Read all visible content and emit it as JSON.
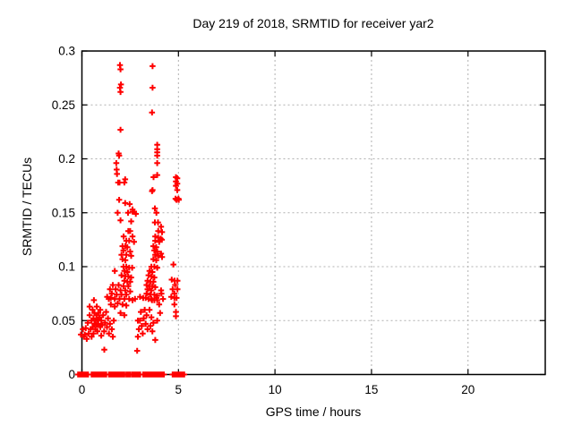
{
  "chart_data": {
    "type": "scatter",
    "title": "Day 219 of 2018, SRMTID for receiver yar2",
    "xlabel": "GPS time / hours",
    "ylabel": "SRMTID / TECUs",
    "legend": "none",
    "grid": true,
    "marker": "plus",
    "xlim": [
      0,
      24
    ],
    "ylim": [
      0,
      0.3
    ],
    "x_ticks": [
      0,
      5,
      10,
      15,
      20
    ],
    "x_tick_labels": [
      "0",
      "5",
      "10",
      "15",
      "20"
    ],
    "y_ticks": [
      0,
      0.05,
      0.1,
      0.15,
      0.2,
      0.25,
      0.3
    ],
    "y_tick_labels": [
      "0",
      "0.05",
      "0.1",
      "0.15",
      "0.2",
      "0.25",
      "0.3"
    ],
    "colors": {
      "marker": "#ff0000",
      "grid": "#b0b0b0",
      "frame": "#000000",
      "background": "#ffffff",
      "text": "#000000"
    },
    "points": [
      [
        -0.05,
        0.037
      ],
      [
        0.05,
        0.042
      ],
      [
        0.1,
        0.035
      ],
      [
        0.15,
        0.037
      ],
      [
        0.2,
        0.043
      ],
      [
        0.25,
        0.033
      ],
      [
        0.3,
        0.048
      ],
      [
        0.35,
        0.038
      ],
      [
        0.4,
        0.055
      ],
      [
        0.4,
        0.063
      ],
      [
        0.45,
        0.042
      ],
      [
        0.5,
        0.035
      ],
      [
        0.5,
        0.05
      ],
      [
        0.55,
        0.06
      ],
      [
        0.55,
        0.044
      ],
      [
        0.6,
        0.052
      ],
      [
        0.6,
        0.038
      ],
      [
        0.62,
        0.069
      ],
      [
        0.65,
        0.047
      ],
      [
        0.65,
        0.057
      ],
      [
        0.7,
        0.05
      ],
      [
        0.7,
        0.042
      ],
      [
        0.75,
        0.055
      ],
      [
        0.75,
        0.046
      ],
      [
        0.77,
        0.063
      ],
      [
        0.8,
        0.051
      ],
      [
        0.8,
        0.04
      ],
      [
        0.85,
        0.057
      ],
      [
        0.85,
        0.047
      ],
      [
        0.9,
        0.053
      ],
      [
        0.95,
        0.044
      ],
      [
        0.95,
        0.06
      ],
      [
        1.0,
        0.05
      ],
      [
        1.0,
        0.036
      ],
      [
        1.05,
        0.046
      ],
      [
        1.1,
        0.055
      ],
      [
        1.15,
        0.04
      ],
      [
        1.16,
        0.023
      ],
      [
        1.2,
        0.048
      ],
      [
        1.25,
        0.058
      ],
      [
        1.3,
        0.044
      ],
      [
        1.31,
        0.072
      ],
      [
        1.35,
        0.052
      ],
      [
        1.39,
        0.07
      ],
      [
        1.4,
        0.038
      ],
      [
        1.45,
        0.047
      ],
      [
        1.45,
        0.079
      ],
      [
        1.5,
        0.065
      ],
      [
        1.5,
        0.071
      ],
      [
        1.55,
        0.042
      ],
      [
        1.55,
        0.075
      ],
      [
        1.6,
        0.035
      ],
      [
        1.6,
        0.083
      ],
      [
        1.65,
        0.05
      ],
      [
        1.7,
        0.063
      ],
      [
        1.7,
        0.07
      ],
      [
        1.7,
        0.096
      ],
      [
        1.75,
        0.079
      ],
      [
        1.78,
        0.196
      ],
      [
        1.8,
        0.19
      ],
      [
        1.8,
        0.074
      ],
      [
        1.82,
        0.186
      ],
      [
        1.85,
        0.15
      ],
      [
        1.85,
        0.066
      ],
      [
        1.88,
        0.178
      ],
      [
        1.9,
        0.205
      ],
      [
        1.9,
        0.083
      ],
      [
        1.93,
        0.162
      ],
      [
        1.93,
        0.203
      ],
      [
        1.95,
        0.178
      ],
      [
        1.95,
        0.07
      ],
      [
        1.97,
        0.287
      ],
      [
        1.97,
        0.266
      ],
      [
        2.0,
        0.283
      ],
      [
        2.0,
        0.262
      ],
      [
        2.0,
        0.227
      ],
      [
        2.0,
        0.143
      ],
      [
        2.0,
        0.078
      ],
      [
        2.0,
        0.057
      ],
      [
        2.02,
        0.269
      ],
      [
        2.05,
        0.111
      ],
      [
        2.05,
        0.092
      ],
      [
        2.05,
        0.074
      ],
      [
        2.1,
        0.119
      ],
      [
        2.1,
        0.107
      ],
      [
        2.1,
        0.065
      ],
      [
        2.15,
        0.115
      ],
      [
        2.15,
        0.1
      ],
      [
        2.15,
        0.082
      ],
      [
        2.16,
        0.128
      ],
      [
        2.2,
        0.178
      ],
      [
        2.2,
        0.096
      ],
      [
        2.2,
        0.087
      ],
      [
        2.2,
        0.07
      ],
      [
        2.2,
        0.055
      ],
      [
        2.24,
        0.181
      ],
      [
        2.24,
        0.159
      ],
      [
        2.25,
        0.119
      ],
      [
        2.25,
        0.106
      ],
      [
        2.25,
        0.091
      ],
      [
        2.25,
        0.078
      ],
      [
        2.3,
        0.124
      ],
      [
        2.3,
        0.111
      ],
      [
        2.3,
        0.1
      ],
      [
        2.3,
        0.074
      ],
      [
        2.3,
        0.064
      ],
      [
        2.35,
        0.118
      ],
      [
        2.35,
        0.095
      ],
      [
        2.35,
        0.086
      ],
      [
        2.39,
        0.15
      ],
      [
        2.4,
        0.133
      ],
      [
        2.4,
        0.091
      ],
      [
        2.4,
        0.082
      ],
      [
        2.45,
        0.124
      ],
      [
        2.45,
        0.099
      ],
      [
        2.45,
        0.07
      ],
      [
        2.47,
        0.158
      ],
      [
        2.5,
        0.133
      ],
      [
        2.5,
        0.114
      ],
      [
        2.5,
        0.086
      ],
      [
        2.5,
        0.077
      ],
      [
        2.55,
        0.142
      ],
      [
        2.55,
        0.11
      ],
      [
        2.55,
        0.09
      ],
      [
        2.6,
        0.099
      ],
      [
        2.62,
        0.151
      ],
      [
        2.62,
        0.128
      ],
      [
        2.62,
        0.153
      ],
      [
        2.62,
        0.069
      ],
      [
        2.7,
        0.151
      ],
      [
        2.7,
        0.123
      ],
      [
        2.75,
        0.07
      ],
      [
        2.79,
        0.149
      ],
      [
        2.86,
        0.022
      ],
      [
        2.9,
        0.035
      ],
      [
        2.9,
        0.05
      ],
      [
        2.95,
        0.042
      ],
      [
        3.0,
        0.05
      ],
      [
        3.01,
        0.072
      ],
      [
        3.05,
        0.058
      ],
      [
        3.1,
        0.045
      ],
      [
        3.15,
        0.038
      ],
      [
        3.17,
        0.071
      ],
      [
        3.2,
        0.052
      ],
      [
        3.25,
        0.06
      ],
      [
        3.3,
        0.071
      ],
      [
        3.3,
        0.047
      ],
      [
        3.35,
        0.083
      ],
      [
        3.35,
        0.075
      ],
      [
        3.35,
        0.055
      ],
      [
        3.4,
        0.087
      ],
      [
        3.4,
        0.079
      ],
      [
        3.4,
        0.042
      ],
      [
        3.45,
        0.092
      ],
      [
        3.45,
        0.07
      ],
      [
        3.5,
        0.096
      ],
      [
        3.5,
        0.082
      ],
      [
        3.5,
        0.06
      ],
      [
        3.55,
        0.086
      ],
      [
        3.55,
        0.074
      ],
      [
        3.55,
        0.045
      ],
      [
        3.6,
        0.1
      ],
      [
        3.6,
        0.091
      ],
      [
        3.6,
        0.078
      ],
      [
        3.6,
        0.07
      ],
      [
        3.6,
        0.053
      ],
      [
        3.63,
        0.243
      ],
      [
        3.63,
        0.17
      ],
      [
        3.63,
        0.069
      ],
      [
        3.65,
        0.095
      ],
      [
        3.65,
        0.082
      ],
      [
        3.65,
        0.04
      ],
      [
        3.66,
        0.286
      ],
      [
        3.66,
        0.266
      ],
      [
        3.66,
        0.171
      ],
      [
        3.7,
        0.119
      ],
      [
        3.7,
        0.107
      ],
      [
        3.7,
        0.086
      ],
      [
        3.7,
        0.048
      ],
      [
        3.71,
        0.183
      ],
      [
        3.75,
        0.115
      ],
      [
        3.75,
        0.1
      ],
      [
        3.75,
        0.09
      ],
      [
        3.75,
        0.074
      ],
      [
        3.75,
        0.069
      ],
      [
        3.78,
        0.154
      ],
      [
        3.78,
        0.141
      ],
      [
        3.8,
        0.128
      ],
      [
        3.8,
        0.124
      ],
      [
        3.8,
        0.111
      ],
      [
        3.8,
        0.081
      ],
      [
        3.8,
        0.032
      ],
      [
        3.85,
        0.118
      ],
      [
        3.85,
        0.106
      ],
      [
        3.86,
        0.15
      ],
      [
        3.86,
        0.071
      ],
      [
        3.9,
        0.213
      ],
      [
        3.9,
        0.209
      ],
      [
        3.9,
        0.206
      ],
      [
        3.9,
        0.203
      ],
      [
        3.9,
        0.196
      ],
      [
        3.9,
        0.185
      ],
      [
        3.9,
        0.114
      ],
      [
        3.9,
        0.099
      ],
      [
        3.9,
        0.073
      ],
      [
        3.9,
        0.069
      ],
      [
        3.9,
        0.05
      ],
      [
        3.94,
        0.141
      ],
      [
        3.95,
        0.133
      ],
      [
        3.95,
        0.127
      ],
      [
        3.95,
        0.11
      ],
      [
        4.0,
        0.123
      ],
      [
        4.0,
        0.065
      ],
      [
        4.05,
        0.057
      ],
      [
        4.08,
        0.126
      ],
      [
        4.1,
        0.137
      ],
      [
        4.1,
        0.112
      ],
      [
        4.1,
        0.078
      ],
      [
        4.12,
        0.075
      ],
      [
        4.14,
        0.125
      ],
      [
        4.15,
        0.132
      ],
      [
        4.15,
        0.109
      ],
      [
        4.2,
        0.07
      ],
      [
        4.63,
        0.072
      ],
      [
        4.65,
        0.088
      ],
      [
        4.7,
        0.079
      ],
      [
        4.74,
        0.102
      ],
      [
        4.79,
        0.075
      ],
      [
        4.79,
        0.071
      ],
      [
        4.79,
        0.065
      ],
      [
        4.8,
        0.087
      ],
      [
        4.83,
        0.083
      ],
      [
        4.85,
        0.163
      ],
      [
        4.87,
        0.183
      ],
      [
        4.87,
        0.179
      ],
      [
        4.87,
        0.175
      ],
      [
        4.87,
        0.058
      ],
      [
        4.87,
        0.054
      ],
      [
        4.9,
        0.162
      ],
      [
        4.9,
        0.071
      ],
      [
        4.94,
        0.182
      ],
      [
        4.94,
        0.177
      ],
      [
        4.94,
        0.171
      ],
      [
        4.95,
        0.087
      ],
      [
        4.95,
        0.079
      ],
      [
        5.0,
        0.163
      ],
      [
        5.02,
        0.162
      ]
    ],
    "zero_band_runs": [
      [
        -0.2,
        0.35
      ],
      [
        0.5,
        1.28
      ],
      [
        1.4,
        1.93
      ],
      [
        2.0,
        2.2
      ],
      [
        2.3,
        2.52
      ],
      [
        2.6,
        2.93
      ],
      [
        2.98,
        3.04
      ],
      [
        3.17,
        3.6
      ],
      [
        3.66,
        3.75
      ],
      [
        3.8,
        4.12
      ],
      [
        4.17,
        4.28
      ],
      [
        4.7,
        5.3
      ]
    ],
    "zero_band_step": 0.04
  }
}
